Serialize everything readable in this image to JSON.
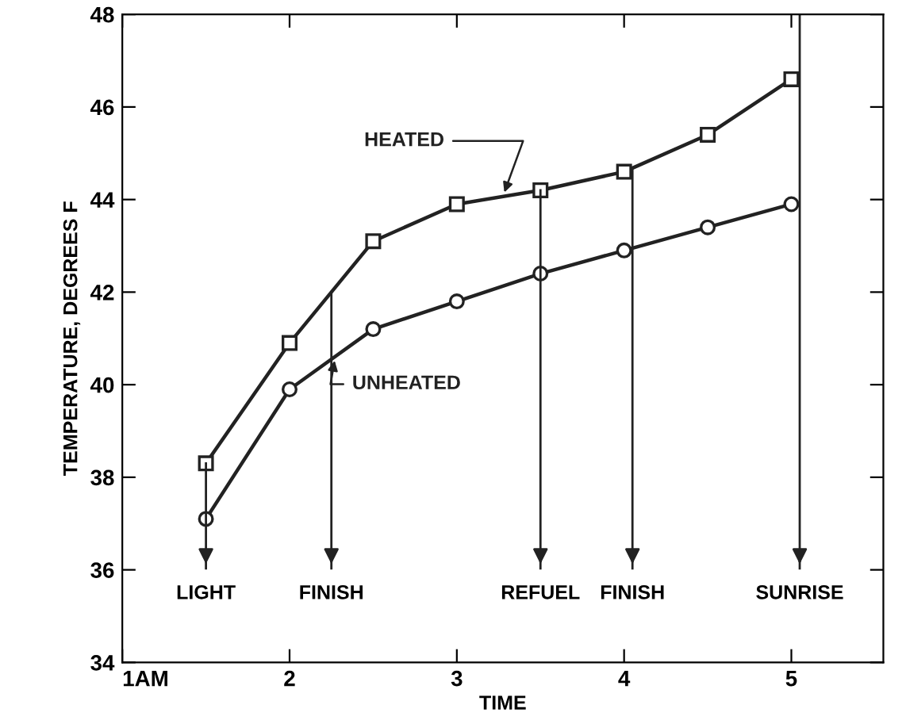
{
  "chart_data": {
    "type": "line",
    "xlabel": "TIME",
    "ylabel": "TEMPERATURE, DEGREES F",
    "series": [
      {
        "name": "HEATED",
        "color": "#222222",
        "marker": "square",
        "x": [
          1.5,
          2,
          2.5,
          3,
          3.5,
          4,
          4.5,
          5
        ],
        "values": [
          38.3,
          40.9,
          43.1,
          43.9,
          44.2,
          44.6,
          45.4,
          46.6
        ]
      },
      {
        "name": "UNHEATED",
        "color": "#222222",
        "marker": "circle",
        "x": [
          1.5,
          2,
          2.5,
          3,
          3.5,
          4,
          4.5,
          5
        ],
        "values": [
          37.1,
          39.9,
          41.2,
          41.8,
          42.4,
          42.9,
          43.4,
          43.9
        ]
      }
    ],
    "xlim": [
      1,
      5.55
    ],
    "xticks": [
      {
        "value": 1,
        "label": "1AM"
      },
      2,
      3,
      4,
      5
    ],
    "ylim": [
      34,
      48
    ],
    "yticks": [
      34,
      36,
      38,
      40,
      42,
      44,
      46,
      48
    ],
    "ref_lines": [
      {
        "axis": "x",
        "value": 1.5,
        "label": "LIGHT"
      },
      {
        "axis": "x",
        "value": 2.25,
        "label": "FINISH"
      },
      {
        "axis": "x",
        "value": 3.5,
        "label": "REFUEL"
      },
      {
        "axis": "x",
        "value": 4.05,
        "label": "FINISH"
      },
      {
        "axis": "x",
        "value": 5.05,
        "label": "SUNRISE"
      }
    ],
    "grid": false,
    "legend": false
  }
}
